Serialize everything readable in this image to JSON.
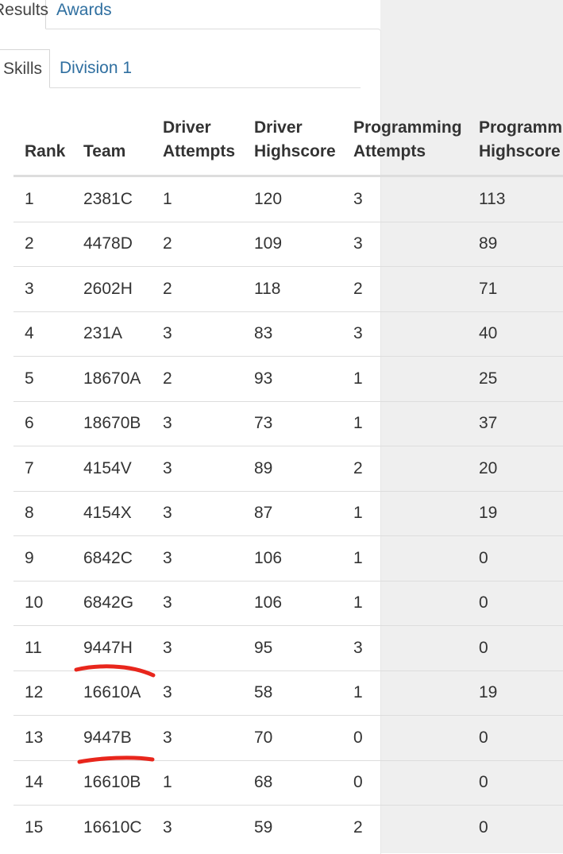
{
  "top_tabs": {
    "active_label": "Results",
    "awards_label": "Awards"
  },
  "sub_tabs": {
    "active_label": "Skills",
    "division_label": "Division 1"
  },
  "table": {
    "headers": {
      "rank": "Rank",
      "team": "Team",
      "driver_attempts": [
        "Driver",
        "Attempts"
      ],
      "driver_highscore": [
        "Driver",
        "Highscore"
      ],
      "programming_attempts": [
        "Programming",
        "Attempts"
      ],
      "programming_highscore": [
        "Programming",
        "Highscore"
      ]
    },
    "rows": [
      {
        "rank": "1",
        "team": "2381C",
        "driver_attempts": "1",
        "driver_highscore": "120",
        "programming_attempts": "3",
        "programming_highscore": "113"
      },
      {
        "rank": "2",
        "team": "4478D",
        "driver_attempts": "2",
        "driver_highscore": "109",
        "programming_attempts": "3",
        "programming_highscore": "89"
      },
      {
        "rank": "3",
        "team": "2602H",
        "driver_attempts": "2",
        "driver_highscore": "118",
        "programming_attempts": "2",
        "programming_highscore": "71"
      },
      {
        "rank": "4",
        "team": "231A",
        "driver_attempts": "3",
        "driver_highscore": "83",
        "programming_attempts": "3",
        "programming_highscore": "40"
      },
      {
        "rank": "5",
        "team": "18670A",
        "driver_attempts": "2",
        "driver_highscore": "93",
        "programming_attempts": "1",
        "programming_highscore": "25"
      },
      {
        "rank": "6",
        "team": "18670B",
        "driver_attempts": "3",
        "driver_highscore": "73",
        "programming_attempts": "1",
        "programming_highscore": "37"
      },
      {
        "rank": "7",
        "team": "4154V",
        "driver_attempts": "3",
        "driver_highscore": "89",
        "programming_attempts": "2",
        "programming_highscore": "20"
      },
      {
        "rank": "8",
        "team": "4154X",
        "driver_attempts": "3",
        "driver_highscore": "87",
        "programming_attempts": "1",
        "programming_highscore": "19"
      },
      {
        "rank": "9",
        "team": "6842C",
        "driver_attempts": "3",
        "driver_highscore": "106",
        "programming_attempts": "1",
        "programming_highscore": "0"
      },
      {
        "rank": "10",
        "team": "6842G",
        "driver_attempts": "3",
        "driver_highscore": "106",
        "programming_attempts": "1",
        "programming_highscore": "0"
      },
      {
        "rank": "11",
        "team": "9447H",
        "driver_attempts": "3",
        "driver_highscore": "95",
        "programming_attempts": "3",
        "programming_highscore": "0"
      },
      {
        "rank": "12",
        "team": "16610A",
        "driver_attempts": "3",
        "driver_highscore": "58",
        "programming_attempts": "1",
        "programming_highscore": "19"
      },
      {
        "rank": "13",
        "team": "9447B",
        "driver_attempts": "3",
        "driver_highscore": "70",
        "programming_attempts": "0",
        "programming_highscore": "0"
      },
      {
        "rank": "14",
        "team": "16610B",
        "driver_attempts": "1",
        "driver_highscore": "68",
        "programming_attempts": "0",
        "programming_highscore": "0"
      },
      {
        "rank": "15",
        "team": "16610C",
        "driver_attempts": "3",
        "driver_highscore": "59",
        "programming_attempts": "2",
        "programming_highscore": "0"
      }
    ]
  },
  "annotations": {
    "underline_color": "#e8261c"
  }
}
